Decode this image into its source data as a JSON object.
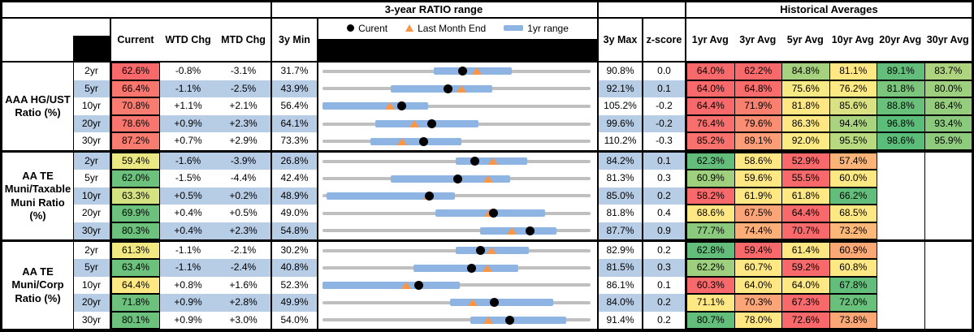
{
  "colors": {
    "stripe_blue": "#B7CCE5",
    "bar_blue": "#8DB4E2",
    "range_gray": "#BFBFBF",
    "triangle_orange": "#F79646",
    "dot_black": "#000000",
    "heat_red": "#F8696B",
    "heat_yellow": "#FFE884",
    "heat_green": "#63BE7B"
  },
  "chart_data": {
    "type": "table",
    "section_headers": {
      "range": "3-year RATIO range",
      "hist": "Historical Averages"
    },
    "columns": {
      "current": "Current",
      "wtd": "WTD Chg",
      "mtd": "MTD Chg",
      "min": "3y Min",
      "max": "3y Max",
      "z": "z-score"
    },
    "avg_columns": [
      "1yr Avg",
      "3yr Avg",
      "5yr Avg",
      "10yr Avg",
      "20yr Avg",
      "30yr Avg"
    ],
    "legend": {
      "dot": "Curent",
      "triangle": "Last Month End",
      "bar": "1yr range"
    },
    "embedded_chart": {
      "type": "range-dot",
      "x_mapping": "each row scaled from 3y Min to 3y Max",
      "markers": [
        "current dot",
        "last month end triangle",
        "1yr range bar"
      ]
    },
    "groups": [
      {
        "label": "AAA HG/UST\nRatio (%)",
        "rows": [
          {
            "tenor": "2yr",
            "current": 62.6,
            "current_bg": "#F8696B",
            "wtd": "-0.8%",
            "mtd": "-3.1%",
            "min3y": 31.7,
            "max3y": 90.8,
            "z": "0.0",
            "bar_1yr": [
              56.3,
              73.4
            ],
            "last_month_end": 65.7,
            "avgs": [
              {
                "v": 64.0,
                "bg": "#F8696B"
              },
              {
                "v": 62.2,
                "bg": "#F8696B"
              },
              {
                "v": 84.8,
                "bg": "#A6D27F"
              },
              {
                "v": 81.1,
                "bg": "#FFE784"
              },
              {
                "v": 89.1,
                "bg": "#63BE7B"
              },
              {
                "v": 83.7,
                "bg": "#AFD47F"
              }
            ]
          },
          {
            "tenor": "5yr",
            "current": 66.4,
            "current_bg": "#F9766F",
            "wtd": "-1.1%",
            "mtd": "-2.5%",
            "min3y": 43.9,
            "max3y": 92.1,
            "z": "0.1",
            "bar_1yr": [
              56.1,
              74.4
            ],
            "last_month_end": 68.9,
            "avgs": [
              {
                "v": 64.0,
                "bg": "#F8696B"
              },
              {
                "v": 64.8,
                "bg": "#F86D6C"
              },
              {
                "v": 75.6,
                "bg": "#F7E983"
              },
              {
                "v": 76.2,
                "bg": "#FDEA83"
              },
              {
                "v": 81.8,
                "bg": "#7BC67C"
              },
              {
                "v": 80.0,
                "bg": "#9DCF7E"
              }
            ]
          },
          {
            "tenor": "10yr",
            "current": 70.8,
            "current_bg": "#F97C70",
            "wtd": "+1.1%",
            "mtd": "+2.1%",
            "min3y": 56.4,
            "max3y": 105.2,
            "z": "-0.2",
            "bar_1yr": [
              56.4,
              75.6
            ],
            "last_month_end": 68.7,
            "avgs": [
              {
                "v": 64.4,
                "bg": "#F8696B"
              },
              {
                "v": 71.9,
                "bg": "#F9806F"
              },
              {
                "v": 81.8,
                "bg": "#FFE884"
              },
              {
                "v": 85.6,
                "bg": "#D9E182"
              },
              {
                "v": 88.8,
                "bg": "#68C07B"
              },
              {
                "v": 86.4,
                "bg": "#95CC7E"
              }
            ]
          },
          {
            "tenor": "20yr",
            "current": 78.6,
            "current_bg": "#F9766F",
            "wtd": "+0.9%",
            "mtd": "+2.3%",
            "min3y": 64.1,
            "max3y": 99.6,
            "z": "-0.2",
            "bar_1yr": [
              71.1,
              84.8
            ],
            "last_month_end": 76.3,
            "avgs": [
              {
                "v": 76.4,
                "bg": "#F86F6D"
              },
              {
                "v": 79.6,
                "bg": "#FA8D72"
              },
              {
                "v": 86.3,
                "bg": "#FFE884"
              },
              {
                "v": 94.4,
                "bg": "#A9D37F"
              },
              {
                "v": 96.8,
                "bg": "#5BBD7A"
              },
              {
                "v": 93.4,
                "bg": "#8BCA7D"
              }
            ]
          },
          {
            "tenor": "30yr",
            "current": 87.2,
            "current_bg": "#F97C70",
            "wtd": "+0.7%",
            "mtd": "+2.9%",
            "min3y": 73.3,
            "max3y": 110.2,
            "z": "-0.3",
            "bar_1yr": [
              79.9,
              92.4
            ],
            "last_month_end": 84.3,
            "avgs": [
              {
                "v": 85.2,
                "bg": "#F8716D"
              },
              {
                "v": 89.1,
                "bg": "#FB9D76"
              },
              {
                "v": 92.0,
                "bg": "#FBEA83"
              },
              {
                "v": 95.5,
                "bg": "#B8D980"
              },
              {
                "v": 98.6,
                "bg": "#5BBD7A"
              },
              {
                "v": 95.9,
                "bg": "#8FCB7D"
              }
            ]
          }
        ]
      },
      {
        "label": "AA TE\nMuni/Taxable\nMuni Ratio\n(%)",
        "rows": [
          {
            "tenor": "2yr",
            "current": 59.4,
            "current_bg": "#EAE883",
            "wtd": "-1.6%",
            "mtd": "-3.9%",
            "min3y": 26.8,
            "max3y": 84.2,
            "z": "0.1",
            "bar_1yr": [
              55.4,
              70.6
            ],
            "last_month_end": 63.3,
            "avgs": [
              {
                "v": 62.3,
                "bg": "#63BE7B"
              },
              {
                "v": 58.6,
                "bg": "#FFE884"
              },
              {
                "v": 52.9,
                "bg": "#F8696B"
              },
              {
                "v": 57.4,
                "bg": "#FCB378"
              },
              null,
              null
            ]
          },
          {
            "tenor": "5yr",
            "current": 62.0,
            "current_bg": "#6CC17C",
            "wtd": "-1.5%",
            "mtd": "-4.4%",
            "min3y": 42.4,
            "max3y": 81.3,
            "z": "0.3",
            "bar_1yr": [
              52.3,
              69.6
            ],
            "last_month_end": 66.4,
            "avgs": [
              {
                "v": 60.9,
                "bg": "#9FD07E"
              },
              {
                "v": 59.6,
                "bg": "#FFE884"
              },
              {
                "v": 55.5,
                "bg": "#F8696B"
              },
              {
                "v": 60.0,
                "bg": "#FEE883"
              },
              null,
              null
            ]
          },
          {
            "tenor": "10yr",
            "current": 63.3,
            "current_bg": "#D5E282",
            "wtd": "+0.5%",
            "mtd": "+0.2%",
            "min3y": 48.9,
            "max3y": 85.0,
            "z": "0.2",
            "bar_1yr": [
              49.4,
              66.7
            ],
            "last_month_end": 63.1,
            "avgs": [
              {
                "v": 58.2,
                "bg": "#F8696B"
              },
              {
                "v": 61.9,
                "bg": "#FFE884"
              },
              {
                "v": 61.8,
                "bg": "#FEE883"
              },
              {
                "v": 66.2,
                "bg": "#63BE7B"
              },
              null,
              null
            ]
          },
          {
            "tenor": "20yr",
            "current": 69.9,
            "current_bg": "#6CC17C",
            "wtd": "+0.4%",
            "mtd": "+0.5%",
            "min3y": 49.0,
            "max3y": 81.8,
            "z": "0.4",
            "bar_1yr": [
              62.8,
              76.2
            ],
            "last_month_end": 69.4,
            "avgs": [
              {
                "v": 68.6,
                "bg": "#FFE884"
              },
              {
                "v": 67.5,
                "bg": "#FBA477"
              },
              {
                "v": 64.4,
                "bg": "#F8696B"
              },
              {
                "v": 68.5,
                "bg": "#FEE883"
              },
              null,
              null
            ]
          },
          {
            "tenor": "30yr",
            "current": 80.3,
            "current_bg": "#6CC17C",
            "wtd": "+0.4%",
            "mtd": "+2.3%",
            "min3y": 54.8,
            "max3y": 87.7,
            "z": "0.9",
            "bar_1yr": [
              74.1,
              83.5
            ],
            "last_month_end": 78.0,
            "avgs": [
              {
                "v": 77.7,
                "bg": "#8BC97D"
              },
              {
                "v": 74.4,
                "bg": "#FBAE78"
              },
              {
                "v": 70.7,
                "bg": "#F8696B"
              },
              {
                "v": 73.2,
                "bg": "#FCB779"
              },
              null,
              null
            ]
          }
        ]
      },
      {
        "label": "AA TE\nMuni/Corp\nRatio (%)",
        "rows": [
          {
            "tenor": "2yr",
            "current": 61.3,
            "current_bg": "#F3E983",
            "wtd": "-1.1%",
            "mtd": "-2.1%",
            "min3y": 30.2,
            "max3y": 82.9,
            "z": "0.2",
            "bar_1yr": [
              56.4,
              70.7
            ],
            "last_month_end": 63.4,
            "avgs": [
              {
                "v": 62.8,
                "bg": "#63BE7B"
              },
              {
                "v": 59.4,
                "bg": "#F8696B"
              },
              {
                "v": 61.4,
                "bg": "#FFE884"
              },
              {
                "v": 60.9,
                "bg": "#FCA876"
              },
              null,
              null
            ]
          },
          {
            "tenor": "5yr",
            "current": 63.4,
            "current_bg": "#6CC17C",
            "wtd": "-1.1%",
            "mtd": "-2.4%",
            "min3y": 40.8,
            "max3y": 81.5,
            "z": "0.3",
            "bar_1yr": [
              54.6,
              70.5
            ],
            "last_month_end": 65.8,
            "avgs": [
              {
                "v": 62.2,
                "bg": "#9DCF7E"
              },
              {
                "v": 60.7,
                "bg": "#FFE884"
              },
              {
                "v": 59.2,
                "bg": "#F8696B"
              },
              {
                "v": 60.8,
                "bg": "#FEE883"
              },
              null,
              null
            ]
          },
          {
            "tenor": "10yr",
            "current": 64.4,
            "current_bg": "#FDE883",
            "wtd": "+0.8%",
            "mtd": "+1.6%",
            "min3y": 52.3,
            "max3y": 86.1,
            "z": "0.1",
            "bar_1yr": [
              52.3,
              69.6
            ],
            "last_month_end": 62.8,
            "avgs": [
              {
                "v": 60.3,
                "bg": "#F8696B"
              },
              {
                "v": 64.0,
                "bg": "#FFE884"
              },
              {
                "v": 64.0,
                "bg": "#FEE883"
              },
              {
                "v": 67.8,
                "bg": "#63BE7B"
              },
              null,
              null
            ]
          },
          {
            "tenor": "20yr",
            "current": 71.8,
            "current_bg": "#6CC17C",
            "wtd": "+0.9%",
            "mtd": "+2.8%",
            "min3y": 49.9,
            "max3y": 84.0,
            "z": "0.2",
            "bar_1yr": [
              66.1,
              79.2
            ],
            "last_month_end": 69.0,
            "avgs": [
              {
                "v": 71.1,
                "bg": "#FFE884"
              },
              {
                "v": 70.3,
                "bg": "#FBA477"
              },
              {
                "v": 67.3,
                "bg": "#F8696B"
              },
              {
                "v": 72.0,
                "bg": "#68C07B"
              },
              null,
              null
            ]
          },
          {
            "tenor": "30yr",
            "current": 80.1,
            "current_bg": "#6CC17C",
            "wtd": "+0.9%",
            "mtd": "+3.0%",
            "min3y": 54.0,
            "max3y": 91.4,
            "z": "0.2",
            "bar_1yr": [
              74.6,
              88.0
            ],
            "last_month_end": 77.1,
            "avgs": [
              {
                "v": 80.7,
                "bg": "#63BE7B"
              },
              {
                "v": 78.0,
                "bg": "#FFE884"
              },
              {
                "v": 72.6,
                "bg": "#F8696B"
              },
              {
                "v": 73.8,
                "bg": "#FCA876"
              },
              null,
              null
            ]
          }
        ]
      }
    ]
  }
}
